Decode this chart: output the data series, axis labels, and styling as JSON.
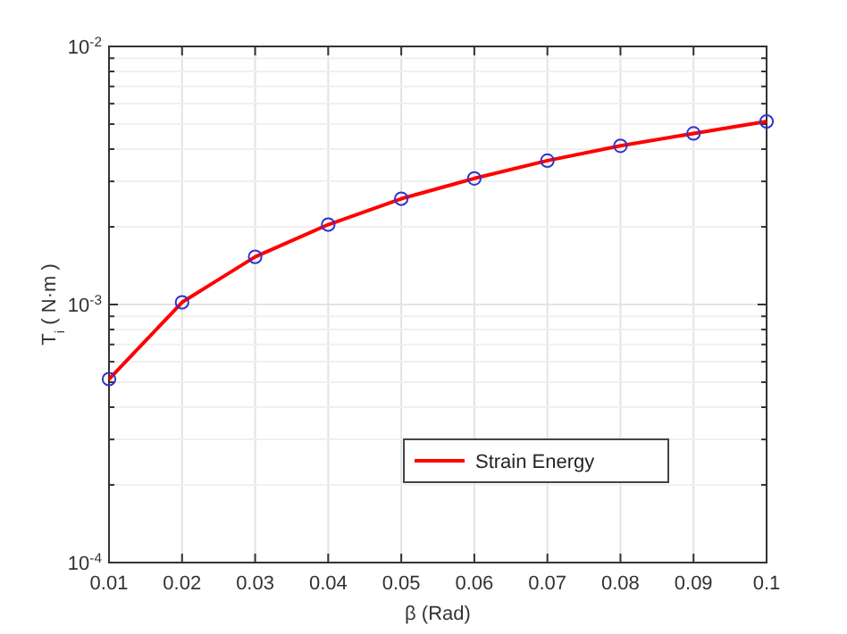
{
  "chart_data": {
    "type": "line",
    "xlabel": "β (Rad)",
    "ylabel": "T$_{i}$ ( N·m )",
    "x": [
      0.01,
      0.02,
      0.03,
      0.04,
      0.05,
      0.06,
      0.07,
      0.08,
      0.09,
      0.1
    ],
    "series": [
      {
        "name": "Strain Energy",
        "color": "#ff0000",
        "marker": "none",
        "values": [
          0.000514,
          0.00102,
          0.00153,
          0.00204,
          0.00257,
          0.00308,
          0.00361,
          0.00412,
          0.0046,
          0.00512
        ]
      },
      {
        "color": "#3333cc",
        "type": "scatter",
        "marker": "circle",
        "values": [
          0.000514,
          0.00102,
          0.00153,
          0.00204,
          0.00257,
          0.00308,
          0.00361,
          0.00412,
          0.0046,
          0.00512
        ]
      }
    ],
    "xlim": [
      0.01,
      0.1
    ],
    "xticks": [
      0.01,
      0.02,
      0.03,
      0.04,
      0.05,
      0.06,
      0.07,
      0.08,
      0.09,
      0.1
    ],
    "ylim": [
      0.0001,
      0.01
    ],
    "yticks": [
      {
        "value": 0.0001,
        "label": "10$^{-4}$"
      },
      {
        "value": 0.001,
        "label": "10$^{-3}$"
      },
      {
        "value": 0.01,
        "label": "10$^{-2}$"
      }
    ],
    "log": true,
    "grid": true,
    "legend": "bottom right"
  }
}
